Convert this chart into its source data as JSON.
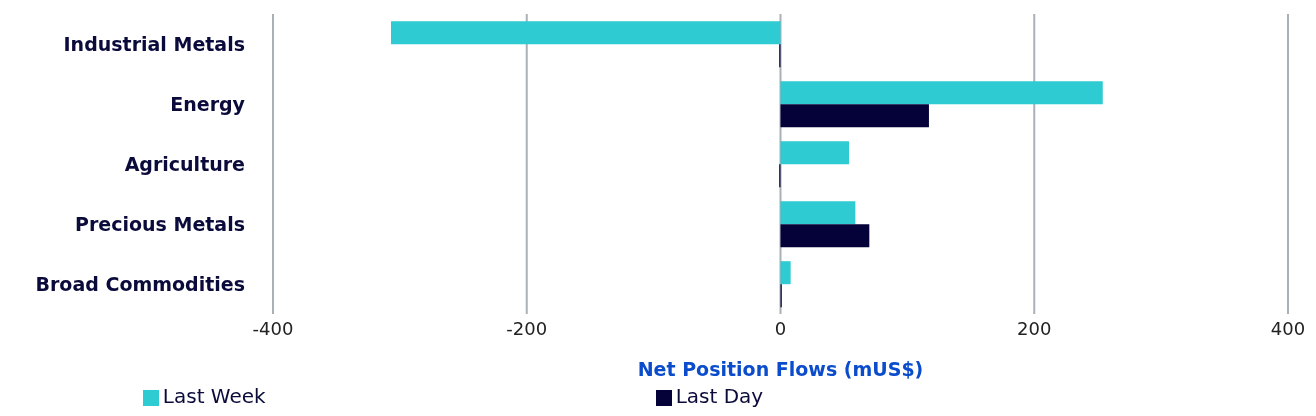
{
  "chart_data": {
    "type": "bar",
    "orientation": "horizontal",
    "xlabel": "Net Position Flows (mUS$)",
    "categories": [
      "Industrial Metals",
      "Energy",
      "Agriculture",
      "Precious Metals",
      "Broad Commodities"
    ],
    "series": [
      {
        "name": "Last Week",
        "color": "#2ecbd3",
        "values": [
          -307,
          254,
          54,
          59,
          8
        ]
      },
      {
        "name": "Last Day",
        "color": "#040238",
        "values": [
          -1,
          117,
          -1,
          70,
          1
        ]
      }
    ],
    "xlim": [
      -400,
      400
    ],
    "xticks": [
      -400,
      -200,
      0,
      200,
      400
    ],
    "grid": "x",
    "legend": "bottom"
  }
}
